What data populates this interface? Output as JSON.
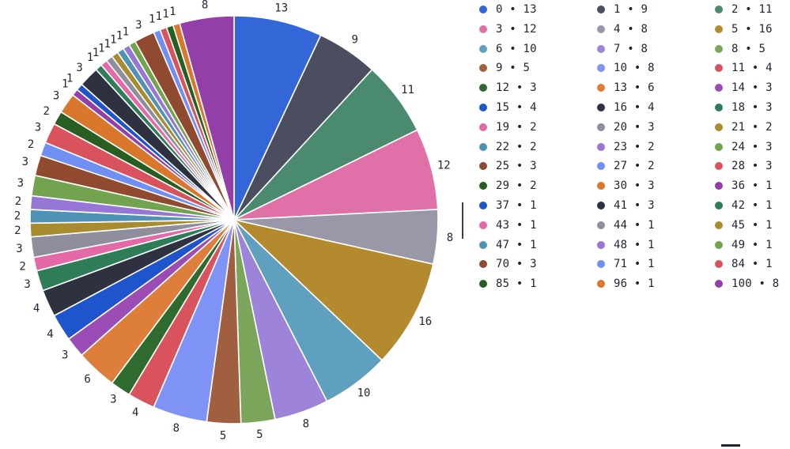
{
  "chart_data": {
    "type": "pie",
    "categories": [
      "0",
      "1",
      "2",
      "3",
      "4",
      "5",
      "6",
      "7",
      "8",
      "9",
      "10",
      "11",
      "12",
      "13",
      "14",
      "15",
      "16",
      "18",
      "19",
      "20",
      "21",
      "22",
      "23",
      "24",
      "25",
      "27",
      "28",
      "29",
      "30",
      "36",
      "37",
      "41",
      "42",
      "43",
      "44",
      "45",
      "47",
      "48",
      "49",
      "70",
      "71",
      "84",
      "85",
      "96",
      "100"
    ],
    "values": [
      13,
      9,
      11,
      12,
      8,
      16,
      10,
      8,
      5,
      5,
      8,
      4,
      3,
      6,
      3,
      4,
      4,
      3,
      2,
      3,
      2,
      2,
      2,
      3,
      3,
      2,
      3,
      2,
      3,
      1,
      1,
      3,
      1,
      1,
      1,
      1,
      1,
      1,
      1,
      3,
      1,
      1,
      1,
      1,
      8
    ],
    "colors": [
      "#3366d6",
      "#4a4e5e",
      "#4a8a6e",
      "#e070a8",
      "#9898a8",
      "#b38a2e",
      "#5fa0be",
      "#9d84d8",
      "#7aa55a",
      "#a0603f",
      "#7e93f5",
      "#d9535f",
      "#2f6b2f",
      "#dd7f3a",
      "#9b4cb5",
      "#1f55cc",
      "#2e3240",
      "#2e7d58",
      "#e46aa7",
      "#8e8e9c",
      "#a98b30",
      "#4e93b5",
      "#9777d6",
      "#74a350",
      "#8f4a30",
      "#6f90f2",
      "#d9535f",
      "#295e22",
      "#d9772c",
      "#943ea8",
      "#1f55cc",
      "#2e3240",
      "#2e7d58",
      "#e46aa7",
      "#8e8e9c",
      "#a98b30",
      "#4e93b5",
      "#9777d6",
      "#74a350",
      "#8f4a30",
      "#6f90f2",
      "#d9535f",
      "#295e22",
      "#d9772c",
      "#943ea8"
    ],
    "legend_labels": [
      "0 • 13",
      "1 • 9",
      "2 • 11",
      "3 • 12",
      "4 • 8",
      "5 • 16",
      "6 • 10",
      "7 • 8",
      "8 • 5",
      "9 • 5",
      "10 • 8",
      "11 • 4",
      "12 • 3",
      "13 • 6",
      "14 • 3",
      "15 • 4",
      "16 • 4",
      "18 • 3",
      "19 • 2",
      "20 • 3",
      "21 • 2",
      "22 • 2",
      "23 • 2",
      "24 • 3",
      "25 • 3",
      "27 • 2",
      "28 • 3",
      "29 • 2",
      "30 • 3",
      "36 • 1",
      "37 • 1",
      "41 • 3",
      "42 • 1",
      "43 • 1",
      "44 • 1",
      "45 • 1",
      "47 • 1",
      "48 • 1",
      "49 • 1",
      "70 • 3",
      "71 • 1",
      "84 • 1",
      "85 • 1",
      "96 • 1",
      "100 • 8"
    ],
    "legend_placement": "right"
  }
}
